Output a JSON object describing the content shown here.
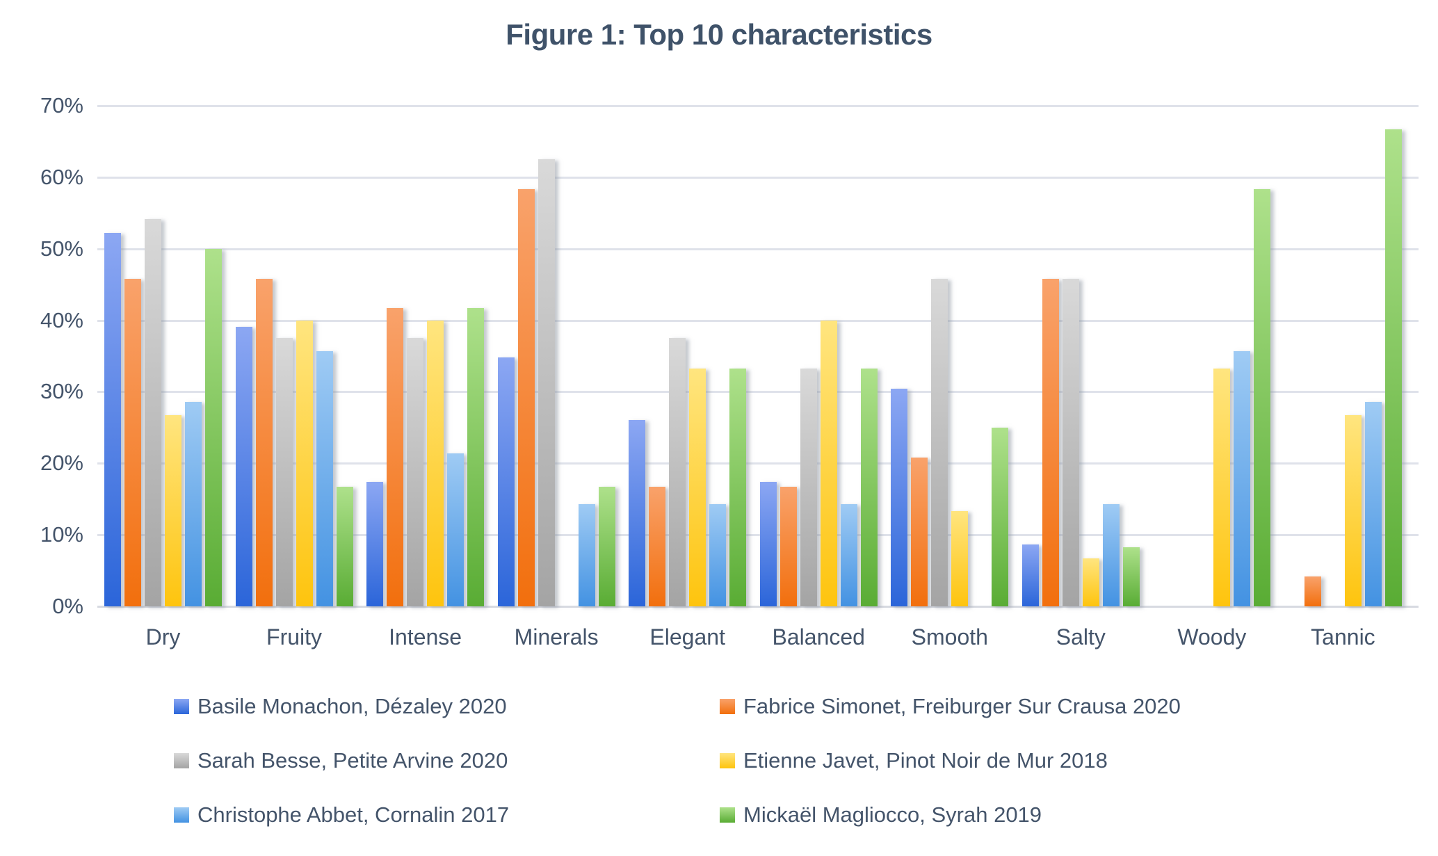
{
  "chart_data": {
    "type": "bar",
    "title": "Figure 1: Top 10 characteristics",
    "categories": [
      "Dry",
      "Fruity",
      "Intense",
      "Minerals",
      "Elegant",
      "Balanced",
      "Smooth",
      "Salty",
      "Woody",
      "Tannic"
    ],
    "series": [
      {
        "name": "Basile Monachon, Dézaley 2020",
        "color_top": "#8CA7F3",
        "color_bottom": "#2B65D9",
        "values": [
          52.2,
          39.1,
          17.4,
          34.8,
          26.1,
          17.4,
          30.4,
          8.7,
          0,
          0
        ]
      },
      {
        "name": "Fabrice Simonet, Freiburger Sur Crausa 2020",
        "color_top": "#F9A26B",
        "color_bottom": "#F26F0D",
        "values": [
          45.8,
          45.8,
          41.7,
          58.3,
          16.7,
          16.7,
          20.8,
          45.8,
          0,
          4.2
        ]
      },
      {
        "name": "Sarah Besse, Petite Arvine 2020",
        "color_top": "#D9D9D9",
        "color_bottom": "#A4A4A4",
        "values": [
          54.2,
          37.5,
          37.5,
          62.5,
          37.5,
          33.3,
          45.8,
          45.8,
          0,
          0
        ]
      },
      {
        "name": "Etienne Javet, Pinot Noir de Mur 2018",
        "color_top": "#FFE57F",
        "color_bottom": "#FEC40E",
        "values": [
          26.7,
          40,
          40,
          0,
          33.3,
          40,
          13.3,
          6.7,
          33.3,
          26.7
        ]
      },
      {
        "name": "Christophe Abbet, Cornalin 2017",
        "color_top": "#9FCBF4",
        "color_bottom": "#4392E2",
        "values": [
          28.6,
          35.7,
          21.4,
          14.3,
          14.3,
          14.3,
          0,
          14.3,
          35.7,
          28.6
        ]
      },
      {
        "name": "Mickaël Magliocco, Syrah 2019",
        "color_top": "#AEE18B",
        "color_bottom": "#59AC34",
        "values": [
          50,
          16.7,
          41.7,
          16.7,
          33.3,
          33.3,
          25,
          8.3,
          58.3,
          66.7
        ]
      }
    ],
    "yticks": [
      "70%",
      "60%",
      "50%",
      "40%",
      "30%",
      "20%",
      "10%",
      "0%"
    ],
    "ylim": [
      0,
      70
    ],
    "grid": true,
    "legend_position": "bottom"
  }
}
